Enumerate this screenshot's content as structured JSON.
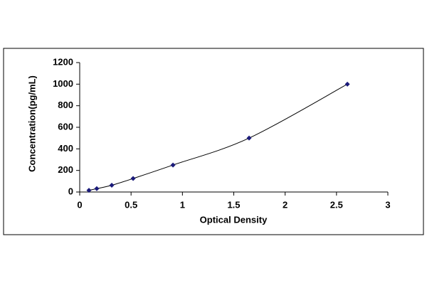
{
  "chart_data": {
    "type": "scatter",
    "x_label": "Optical Density",
    "y_label": "Concentration(pg/mL)",
    "series": [
      {
        "x": [
          0.09,
          0.166,
          0.312,
          0.52,
          0.908,
          1.649,
          2.606
        ],
        "values": [
          15.6,
          31.2,
          62.5,
          125,
          250,
          500,
          1000
        ],
        "color": "#1a1a7a",
        "line_color": "#000000"
      }
    ],
    "xlim": [
      0,
      3
    ],
    "xticks": [
      0,
      0.5,
      1,
      1.5,
      2,
      2.5,
      3
    ],
    "ylim": [
      0,
      1200
    ],
    "yticks": [
      0,
      200,
      400,
      600,
      800,
      1000,
      1200
    ],
    "grid": false
  }
}
